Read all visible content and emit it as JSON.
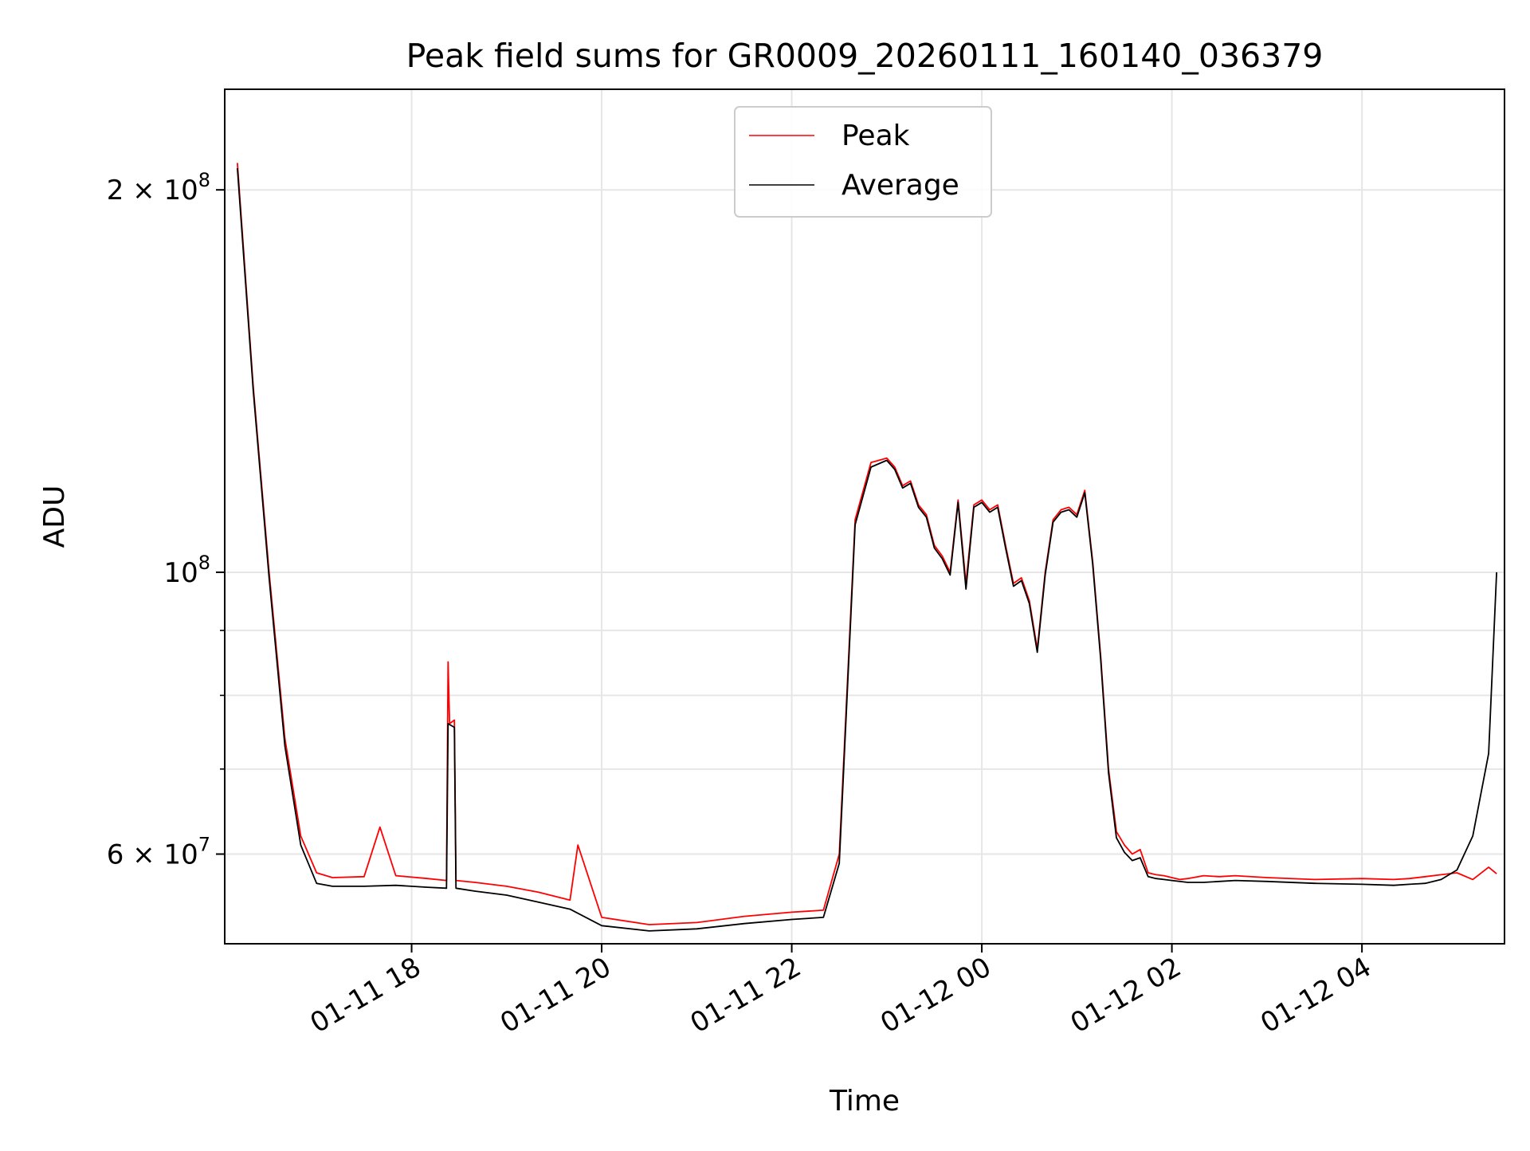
{
  "chart_data": {
    "type": "line",
    "title": "Peak field sums for GR0009_20260111_160140_036379",
    "xlabel": "Time",
    "ylabel": "ADU",
    "yscale": "log",
    "grid": true,
    "legend_position": "top-center",
    "ylim": [
      51000000,
      240000000
    ],
    "xlim": [
      "2026-01-11 16:02",
      "2026-01-12 05:30"
    ],
    "x_ticks": [
      {
        "t": "2026-01-11 18:00",
        "label": "01-11 18"
      },
      {
        "t": "2026-01-11 20:00",
        "label": "01-11 20"
      },
      {
        "t": "2026-01-11 22:00",
        "label": "01-11 22"
      },
      {
        "t": "2026-01-12 00:00",
        "label": "01-12 00"
      },
      {
        "t": "2026-01-12 02:00",
        "label": "01-12 02"
      },
      {
        "t": "2026-01-12 04:00",
        "label": "01-12 04"
      }
    ],
    "y_ticks": [
      {
        "value": 60000000,
        "label": "6 × 10^7",
        "mantissa": "6 × 10",
        "exp": "7"
      },
      {
        "value": 100000000,
        "label": "10^8",
        "mantissa": "10",
        "exp": "8"
      },
      {
        "value": 200000000,
        "label": "2 × 10^8",
        "mantissa": "2 × 10",
        "exp": "8"
      }
    ],
    "y_minor_ticks": [
      70000000,
      80000000,
      90000000
    ],
    "series": [
      {
        "name": "Peak",
        "color": "#ff0000",
        "x": [
          "2026-01-11 16:10",
          "2026-01-11 16:20",
          "2026-01-11 16:30",
          "2026-01-11 16:40",
          "2026-01-11 16:50",
          "2026-01-11 17:00",
          "2026-01-11 17:10",
          "2026-01-11 17:30",
          "2026-01-11 17:40",
          "2026-01-11 17:50",
          "2026-01-11 18:10",
          "2026-01-11 18:22",
          "2026-01-11 18:23",
          "2026-01-11 18:24",
          "2026-01-11 18:27",
          "2026-01-11 18:28",
          "2026-01-11 18:40",
          "2026-01-11 19:00",
          "2026-01-11 19:20",
          "2026-01-11 19:40",
          "2026-01-11 19:45",
          "2026-01-11 20:00",
          "2026-01-11 20:30",
          "2026-01-11 21:00",
          "2026-01-11 21:30",
          "2026-01-11 22:00",
          "2026-01-11 22:20",
          "2026-01-11 22:30",
          "2026-01-11 22:40",
          "2026-01-11 22:50",
          "2026-01-11 23:00",
          "2026-01-11 23:05",
          "2026-01-11 23:10",
          "2026-01-11 23:15",
          "2026-01-11 23:20",
          "2026-01-11 23:25",
          "2026-01-11 23:30",
          "2026-01-11 23:35",
          "2026-01-11 23:40",
          "2026-01-11 23:45",
          "2026-01-11 23:50",
          "2026-01-11 23:55",
          "2026-01-12 00:00",
          "2026-01-12 00:05",
          "2026-01-12 00:10",
          "2026-01-12 00:15",
          "2026-01-12 00:20",
          "2026-01-12 00:25",
          "2026-01-12 00:30",
          "2026-01-12 00:35",
          "2026-01-12 00:40",
          "2026-01-12 00:45",
          "2026-01-12 00:50",
          "2026-01-12 00:55",
          "2026-01-12 01:00",
          "2026-01-12 01:05",
          "2026-01-12 01:10",
          "2026-01-12 01:15",
          "2026-01-12 01:20",
          "2026-01-12 01:25",
          "2026-01-12 01:30",
          "2026-01-12 01:35",
          "2026-01-12 01:40",
          "2026-01-12 01:45",
          "2026-01-12 01:50",
          "2026-01-12 01:55",
          "2026-01-12 02:00",
          "2026-01-12 02:05",
          "2026-01-12 02:10",
          "2026-01-12 02:20",
          "2026-01-12 02:30",
          "2026-01-12 02:40",
          "2026-01-12 03:00",
          "2026-01-12 03:30",
          "2026-01-12 04:00",
          "2026-01-12 04:20",
          "2026-01-12 04:30",
          "2026-01-12 04:40",
          "2026-01-12 04:50",
          "2026-01-12 05:00",
          "2026-01-12 05:10",
          "2026-01-12 05:20",
          "2026-01-12 05:25"
        ],
        "y": [
          210000000,
          140000000,
          100000000,
          74000000,
          62000000,
          58000000,
          57500000,
          57600000,
          63000000,
          57700000,
          57400000,
          57200000,
          85000000,
          76000000,
          76500000,
          57200000,
          57000000,
          56600000,
          56000000,
          55200000,
          61000000,
          53500000,
          52800000,
          53000000,
          53600000,
          54000000,
          54200000,
          60000000,
          110000000,
          122000000,
          123000000,
          121000000,
          117000000,
          118000000,
          113000000,
          111000000,
          105000000,
          103000000,
          100000000,
          114000000,
          98000000,
          113000000,
          114000000,
          112000000,
          113000000,
          105000000,
          98000000,
          99000000,
          95000000,
          87000000,
          100000000,
          110000000,
          112000000,
          112500000,
          111000000,
          116000000,
          102000000,
          86000000,
          70000000,
          62500000,
          61000000,
          60000000,
          60500000,
          58000000,
          57800000,
          57700000,
          57500000,
          57300000,
          57400000,
          57700000,
          57600000,
          57700000,
          57500000,
          57300000,
          57400000,
          57300000,
          57400000,
          57600000,
          57800000,
          58000000,
          57300000,
          58600000,
          57900000
        ]
      },
      {
        "name": "Average",
        "color": "#000000",
        "x": [
          "2026-01-11 16:10",
          "2026-01-11 16:20",
          "2026-01-11 16:30",
          "2026-01-11 16:40",
          "2026-01-11 16:50",
          "2026-01-11 17:00",
          "2026-01-11 17:10",
          "2026-01-11 17:30",
          "2026-01-11 17:50",
          "2026-01-11 18:10",
          "2026-01-11 18:22",
          "2026-01-11 18:23",
          "2026-01-11 18:27",
          "2026-01-11 18:28",
          "2026-01-11 18:40",
          "2026-01-11 19:00",
          "2026-01-11 19:20",
          "2026-01-11 19:40",
          "2026-01-11 20:00",
          "2026-01-11 20:30",
          "2026-01-11 21:00",
          "2026-01-11 21:30",
          "2026-01-11 22:00",
          "2026-01-11 22:20",
          "2026-01-11 22:30",
          "2026-01-11 22:40",
          "2026-01-11 22:50",
          "2026-01-11 23:00",
          "2026-01-11 23:05",
          "2026-01-11 23:10",
          "2026-01-11 23:15",
          "2026-01-11 23:20",
          "2026-01-11 23:25",
          "2026-01-11 23:30",
          "2026-01-11 23:35",
          "2026-01-11 23:40",
          "2026-01-11 23:45",
          "2026-01-11 23:50",
          "2026-01-11 23:55",
          "2026-01-12 00:00",
          "2026-01-12 00:05",
          "2026-01-12 00:10",
          "2026-01-12 00:15",
          "2026-01-12 00:20",
          "2026-01-12 00:25",
          "2026-01-12 00:30",
          "2026-01-12 00:35",
          "2026-01-12 00:40",
          "2026-01-12 00:45",
          "2026-01-12 00:50",
          "2026-01-12 00:55",
          "2026-01-12 01:00",
          "2026-01-12 01:05",
          "2026-01-12 01:10",
          "2026-01-12 01:15",
          "2026-01-12 01:20",
          "2026-01-12 01:25",
          "2026-01-12 01:30",
          "2026-01-12 01:35",
          "2026-01-12 01:40",
          "2026-01-12 01:45",
          "2026-01-12 01:50",
          "2026-01-12 01:55",
          "2026-01-12 02:00",
          "2026-01-12 02:10",
          "2026-01-12 02:20",
          "2026-01-12 02:30",
          "2026-01-12 02:40",
          "2026-01-12 03:00",
          "2026-01-12 03:30",
          "2026-01-12 04:00",
          "2026-01-12 04:20",
          "2026-01-12 04:30",
          "2026-01-12 04:40",
          "2026-01-12 04:50",
          "2026-01-12 05:00",
          "2026-01-12 05:10",
          "2026-01-12 05:20",
          "2026-01-12 05:25"
        ],
        "y": [
          208000000,
          139000000,
          99000000,
          73000000,
          61000000,
          56900000,
          56600000,
          56600000,
          56700000,
          56500000,
          56400000,
          76000000,
          75500000,
          56400000,
          56100000,
          55700000,
          55000000,
          54300000,
          52700000,
          52200000,
          52400000,
          52900000,
          53300000,
          53500000,
          59000000,
          109000000,
          121000000,
          122500000,
          120500000,
          116500000,
          117500000,
          112500000,
          110500000,
          104500000,
          102500000,
          99500000,
          113500000,
          97000000,
          112500000,
          113500000,
          111500000,
          112500000,
          104500000,
          97500000,
          98500000,
          94500000,
          86500000,
          99500000,
          109500000,
          111500000,
          112000000,
          110500000,
          115500000,
          101500000,
          85500000,
          69500000,
          61800000,
          60200000,
          59300000,
          59600000,
          57600000,
          57400000,
          57300000,
          57200000,
          57000000,
          57000000,
          57100000,
          57200000,
          57100000,
          56900000,
          56800000,
          56700000,
          56800000,
          56900000,
          57300000,
          58300000,
          62000000,
          72000000,
          100000000
        ]
      }
    ]
  }
}
